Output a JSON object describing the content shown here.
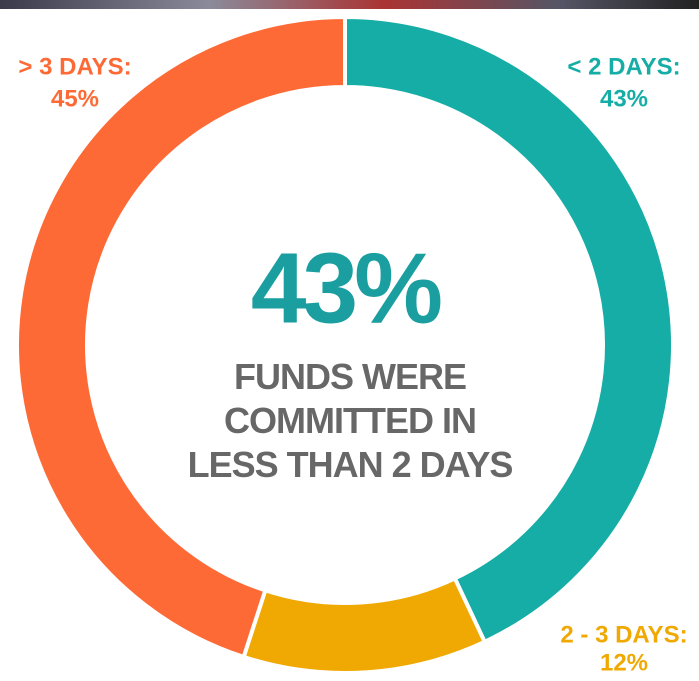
{
  "chart_data": {
    "type": "donut",
    "categories": [
      "< 2 DAYS:",
      "2 - 3 DAYS:",
      "> 3 DAYS:"
    ],
    "values": [
      43,
      12,
      45
    ],
    "value_labels": [
      "43%",
      "12%",
      "45%"
    ],
    "colors": [
      "#15ada5",
      "#f0a902",
      "#fe6a36"
    ],
    "annotation": "FUNDS WERE COMMITTED IN LESS THAN 2 DAYS"
  }
}
